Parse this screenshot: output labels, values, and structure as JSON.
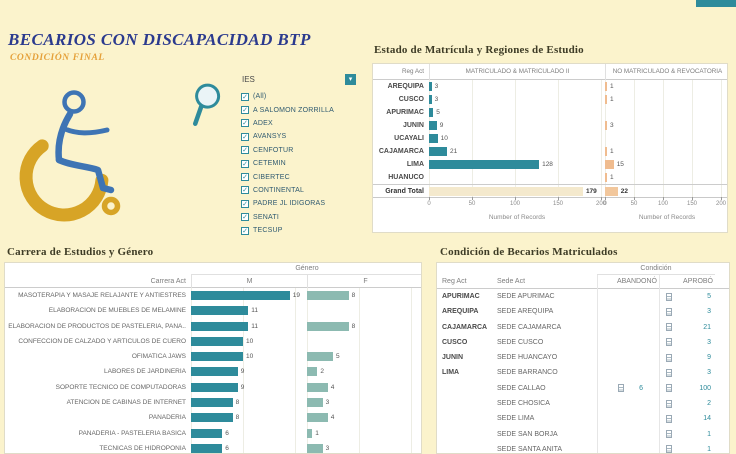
{
  "dashboard": {
    "title": "BECARIOS CON DISCAPACIDAD BTP",
    "subtitle": "CONDICIÓN FINAL"
  },
  "colors": {
    "background": "#FBF3CC",
    "teal_bar": "#2E8B9B",
    "light_teal_bar": "#8CBAB1",
    "peach_bar": "#F0BC8F",
    "total_tan_bar": "#F4E9CD",
    "total_peach_bar": "#F2C79C",
    "title_blue": "#2B3A8E",
    "subtitle_orange": "#E5A13B",
    "figure_blue": "#3E74B4",
    "wheel_gold": "#D7A426",
    "value_teal_text": "#2E8B9B"
  },
  "filter": {
    "label": "IES",
    "all_checked": true,
    "items": [
      "(All)",
      "A SALOMON ZORRILLA",
      "ADEX",
      "AVANSYS",
      "CENFOTUR",
      "CETEMIN",
      "CIBERTEC",
      "CONTINENTAL",
      "PADRE JL IDIGORAS",
      "SENATI",
      "TECSUP"
    ]
  },
  "matricula_chart": {
    "title": "Estado de Matrícula y Regiones de Estudio",
    "row_header": "Reg Act",
    "columns": [
      "MATRICULADO & MATRICULADO II",
      "NO MATRICULADO & REVOCATORIA"
    ],
    "axis_label": "Number of Records",
    "ticks": [
      0,
      50,
      100,
      150,
      200
    ],
    "rows": [
      {
        "region": "AREQUIPA",
        "matriculado": 3,
        "no_matriculado": 1
      },
      {
        "region": "CUSCO",
        "matriculado": 3,
        "no_matriculado": 1
      },
      {
        "region": "APURIMAC",
        "matriculado": 5,
        "no_matriculado": null
      },
      {
        "region": "JUNIN",
        "matriculado": 9,
        "no_matriculado": 3
      },
      {
        "region": "UCAYALI",
        "matriculado": 10,
        "no_matriculado": null
      },
      {
        "region": "CAJAMARCA",
        "matriculado": 21,
        "no_matriculado": 1
      },
      {
        "region": "LIMA",
        "matriculado": 128,
        "no_matriculado": 15
      },
      {
        "region": "HUANUCO",
        "matriculado": null,
        "no_matriculado": 1
      },
      {
        "region": "Grand Total",
        "matriculado": 179,
        "no_matriculado": 22,
        "is_total": true
      }
    ]
  },
  "carrera_chart": {
    "title": "Carrera de Estudios y Género",
    "group_header": "Género",
    "row_header": "Carrera Act",
    "columns": [
      "M",
      "F"
    ],
    "rows": [
      {
        "carrera": "MASOTERAPIA Y MASAJE RELAJANTE Y ANTIESTRES",
        "m": 19,
        "f": 8
      },
      {
        "carrera": "ELABORACION DE MUEBLES DE MELAMINE",
        "m": 11,
        "f": null
      },
      {
        "carrera": "ELABORACION DE PRODUCTOS DE PASTELERIA, PANA..",
        "m": 11,
        "f": 8
      },
      {
        "carrera": "CONFECCION DE CALZADO Y ARTICULOS DE CUERO",
        "m": 10,
        "f": null
      },
      {
        "carrera": "OFIMATICA JAWS",
        "m": 10,
        "f": 5
      },
      {
        "carrera": "LABORES DE JARDINERIA",
        "m": 9,
        "f": 2
      },
      {
        "carrera": "SOPORTE TECNICO DE COMPUTADORAS",
        "m": 9,
        "f": 4
      },
      {
        "carrera": "ATENCION DE CABINAS DE INTERNET",
        "m": 8,
        "f": 3
      },
      {
        "carrera": "PANADERIA",
        "m": 8,
        "f": 4
      },
      {
        "carrera": "PANADERIA - PASTELERIA BASICA",
        "m": 6,
        "f": 1
      },
      {
        "carrera": "TECNICAS DE HIDROPONIA",
        "m": 6,
        "f": 3
      }
    ]
  },
  "condicion_table": {
    "title": "Condición de Becarios Matriculados",
    "group_header": "Condición",
    "columns": {
      "reg": "Reg Act",
      "sede": "Sede Act",
      "abandono": "ABANDONÓ",
      "aprobo": "APROBÓ"
    },
    "rows": [
      {
        "reg": "APURIMAC",
        "sede": "SEDE APURIMAC",
        "abandono": null,
        "aprobo": 5
      },
      {
        "reg": "AREQUIPA",
        "sede": "SEDE AREQUIPA",
        "abandono": null,
        "aprobo": 3
      },
      {
        "reg": "CAJAMARCA",
        "sede": "SEDE CAJAMARCA",
        "abandono": null,
        "aprobo": 21
      },
      {
        "reg": "CUSCO",
        "sede": "SEDE CUSCO",
        "abandono": null,
        "aprobo": 3
      },
      {
        "reg": "JUNIN",
        "sede": "SEDE HUANCAYO",
        "abandono": null,
        "aprobo": 9
      },
      {
        "reg": "LIMA",
        "sede": "SEDE BARRANCO",
        "abandono": null,
        "aprobo": 3
      },
      {
        "reg": "",
        "sede": "SEDE CALLAO",
        "abandono": 6,
        "aprobo": 100
      },
      {
        "reg": "",
        "sede": "SEDE CHOSICA",
        "abandono": null,
        "aprobo": 2
      },
      {
        "reg": "",
        "sede": "SEDE LIMA",
        "abandono": null,
        "aprobo": 14
      },
      {
        "reg": "",
        "sede": "SEDE SAN BORJA",
        "abandono": null,
        "aprobo": 1
      },
      {
        "reg": "",
        "sede": "SEDE SANTA ANITA",
        "abandono": null,
        "aprobo": 1
      }
    ]
  },
  "chart_data": [
    {
      "type": "bar",
      "orientation": "horizontal",
      "title": "Estado de Matrícula y Regiones de Estudio",
      "categories": [
        "AREQUIPA",
        "CUSCO",
        "APURIMAC",
        "JUNIN",
        "UCAYALI",
        "CAJAMARCA",
        "LIMA",
        "HUANUCO",
        "Grand Total"
      ],
      "series": [
        {
          "name": "MATRICULADO & MATRICULADO II",
          "values": [
            3,
            3,
            5,
            9,
            10,
            21,
            128,
            null,
            179
          ]
        },
        {
          "name": "NO MATRICULADO & REVOCATORIA",
          "values": [
            1,
            1,
            null,
            3,
            null,
            1,
            15,
            1,
            22
          ]
        }
      ],
      "xlabel": "Number of Records",
      "xlim": [
        0,
        200
      ],
      "xticks": [
        0,
        50,
        100,
        150,
        200
      ],
      "grid": true,
      "legend_position": "column-headers"
    },
    {
      "type": "bar",
      "orientation": "horizontal",
      "title": "Carrera de Estudios y Género",
      "categories": [
        "MASOTERAPIA Y MASAJE RELAJANTE Y ANTIESTRES",
        "ELABORACION DE MUEBLES DE MELAMINE",
        "ELABORACION DE PRODUCTOS DE PASTELERIA, PANA..",
        "CONFECCION DE CALZADO Y ARTICULOS DE CUERO",
        "OFIMATICA JAWS",
        "LABORES DE JARDINERIA",
        "SOPORTE TECNICO DE COMPUTADORAS",
        "ATENCION DE CABINAS DE INTERNET",
        "PANADERIA",
        "PANADERIA - PASTELERIA BASICA",
        "TECNICAS DE HIDROPONIA"
      ],
      "series": [
        {
          "name": "M",
          "values": [
            19,
            11,
            11,
            10,
            10,
            9,
            9,
            8,
            8,
            6,
            6
          ]
        },
        {
          "name": "F",
          "values": [
            8,
            null,
            8,
            null,
            5,
            2,
            4,
            3,
            4,
            1,
            3
          ]
        }
      ],
      "xlim": [
        0,
        22
      ],
      "grid": true,
      "legend_position": "column-headers"
    },
    {
      "type": "table",
      "title": "Condición de Becarios Matriculados",
      "columns": [
        "Reg Act",
        "Sede Act",
        "ABANDONÓ",
        "APROBÓ"
      ],
      "rows": [
        [
          "APURIMAC",
          "SEDE APURIMAC",
          null,
          5
        ],
        [
          "AREQUIPA",
          "SEDE AREQUIPA",
          null,
          3
        ],
        [
          "CAJAMARCA",
          "SEDE CAJAMARCA",
          null,
          21
        ],
        [
          "CUSCO",
          "SEDE CUSCO",
          null,
          3
        ],
        [
          "JUNIN",
          "SEDE HUANCAYO",
          null,
          9
        ],
        [
          "LIMA",
          "SEDE BARRANCO",
          null,
          3
        ],
        [
          "",
          "SEDE CALLAO",
          6,
          100
        ],
        [
          "",
          "SEDE CHOSICA",
          null,
          2
        ],
        [
          "",
          "SEDE LIMA",
          null,
          14
        ],
        [
          "",
          "SEDE SAN BORJA",
          null,
          1
        ],
        [
          "",
          "SEDE SANTA ANITA",
          null,
          1
        ]
      ]
    }
  ]
}
